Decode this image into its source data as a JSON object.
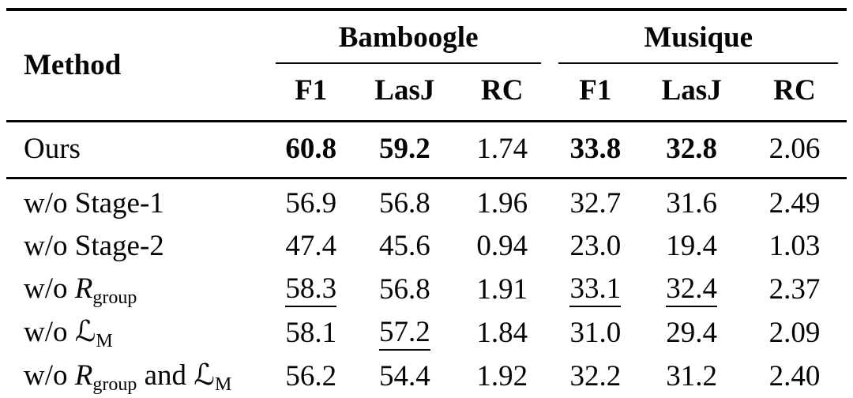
{
  "figure": {
    "background_color": "#ffffff",
    "text_color": "#050505",
    "rule_color": "#050505"
  },
  "table": {
    "method_header": "Method",
    "groups": [
      {
        "label": "Bamboogle",
        "metrics": [
          "F1",
          "LasJ",
          "RC"
        ]
      },
      {
        "label": "Musique",
        "metrics": [
          "F1",
          "LasJ",
          "RC"
        ]
      }
    ],
    "rows": [
      {
        "section": "main",
        "method": [
          {
            "text": "Ours"
          }
        ],
        "cells": [
          {
            "text": "60.8",
            "bold": true
          },
          {
            "text": "59.2",
            "bold": true
          },
          {
            "text": "1.74"
          },
          {
            "text": "33.8",
            "bold": true
          },
          {
            "text": "32.8",
            "bold": true
          },
          {
            "text": "2.06"
          }
        ]
      },
      {
        "section": "ablation first",
        "method": [
          {
            "text": "w/o Stage-1"
          }
        ],
        "cells": [
          {
            "text": "56.9"
          },
          {
            "text": "56.8"
          },
          {
            "text": "1.96"
          },
          {
            "text": "32.7"
          },
          {
            "text": "31.6"
          },
          {
            "text": "2.49"
          }
        ]
      },
      {
        "section": "ablation",
        "method": [
          {
            "text": "w/o Stage-2"
          }
        ],
        "cells": [
          {
            "text": "47.4"
          },
          {
            "text": "45.6"
          },
          {
            "text": "0.94"
          },
          {
            "text": "23.0"
          },
          {
            "text": "19.4"
          },
          {
            "text": "1.03"
          }
        ]
      },
      {
        "section": "ablation",
        "method": [
          {
            "text": "w/o "
          },
          {
            "text": "R",
            "italic": true
          },
          {
            "text": "group",
            "sub": true
          }
        ],
        "cells": [
          {
            "text": "58.3",
            "underline": true
          },
          {
            "text": "56.8"
          },
          {
            "text": "1.91"
          },
          {
            "text": "33.1",
            "underline": true
          },
          {
            "text": "32.4",
            "underline": true
          },
          {
            "text": "2.37"
          }
        ]
      },
      {
        "section": "ablation",
        "method": [
          {
            "text": "w/o "
          },
          {
            "text": "ℒ",
            "script": true
          },
          {
            "text": "M",
            "sub": true
          }
        ],
        "cells": [
          {
            "text": "58.1"
          },
          {
            "text": "57.2",
            "underline": true
          },
          {
            "text": "1.84"
          },
          {
            "text": "31.0"
          },
          {
            "text": "29.4"
          },
          {
            "text": "2.09"
          }
        ]
      },
      {
        "section": "ablation",
        "method": [
          {
            "text": "w/o "
          },
          {
            "text": "R",
            "italic": true
          },
          {
            "text": "group",
            "sub": true
          },
          {
            "text": " and "
          },
          {
            "text": "ℒ",
            "script": true
          },
          {
            "text": "M",
            "sub": true
          }
        ],
        "cells": [
          {
            "text": "56.2"
          },
          {
            "text": "54.4"
          },
          {
            "text": "1.92"
          },
          {
            "text": "32.2"
          },
          {
            "text": "31.2"
          },
          {
            "text": "2.40"
          }
        ]
      }
    ]
  }
}
